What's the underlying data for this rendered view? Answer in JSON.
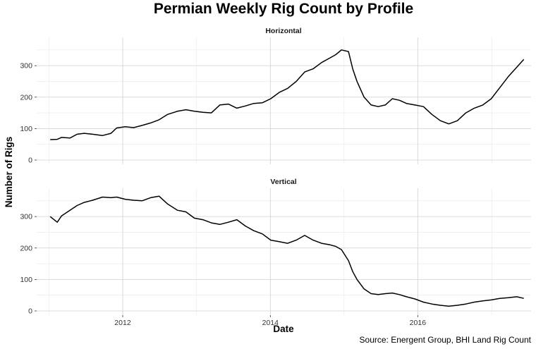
{
  "chart_data": {
    "type": "line",
    "title": "Permian Weekly Rig Count by Profile",
    "xlabel": "Date",
    "ylabel": "Number of Rigs",
    "caption": "Source: Energent Group, BHI Land Rig Count",
    "xlim": [
      "2010-11-01",
      "2017-07-15"
    ],
    "x_ticks": [
      "2012",
      "2014",
      "2016"
    ],
    "y_ticks": [
      0,
      100,
      200,
      300
    ],
    "ylim": [
      0,
      390
    ],
    "grid": true,
    "line_color": "#000000",
    "panels": [
      {
        "name": "Horizontal",
        "points": [
          [
            "2011-01-07",
            65
          ],
          [
            "2011-02-11",
            66
          ],
          [
            "2011-03-04",
            72
          ],
          [
            "2011-04-15",
            70
          ],
          [
            "2011-05-20",
            82
          ],
          [
            "2011-06-24",
            85
          ],
          [
            "2011-08-05",
            82
          ],
          [
            "2011-09-23",
            78
          ],
          [
            "2011-11-04",
            85
          ],
          [
            "2011-12-02",
            102
          ],
          [
            "2012-01-13",
            106
          ],
          [
            "2012-02-24",
            103
          ],
          [
            "2012-04-06",
            110
          ],
          [
            "2012-05-18",
            118
          ],
          [
            "2012-06-29",
            128
          ],
          [
            "2012-08-10",
            145
          ],
          [
            "2012-09-28",
            155
          ],
          [
            "2012-11-09",
            160
          ],
          [
            "2012-12-21",
            155
          ],
          [
            "2013-02-01",
            152
          ],
          [
            "2013-03-15",
            150
          ],
          [
            "2013-04-26",
            175
          ],
          [
            "2013-06-07",
            178
          ],
          [
            "2013-07-19",
            165
          ],
          [
            "2013-08-30",
            172
          ],
          [
            "2013-10-11",
            180
          ],
          [
            "2013-11-22",
            182
          ],
          [
            "2014-01-03",
            195
          ],
          [
            "2014-02-14",
            215
          ],
          [
            "2014-03-28",
            228
          ],
          [
            "2014-05-09",
            250
          ],
          [
            "2014-06-20",
            280
          ],
          [
            "2014-08-01",
            290
          ],
          [
            "2014-09-12",
            310
          ],
          [
            "2014-10-24",
            325
          ],
          [
            "2014-11-21",
            335
          ],
          [
            "2014-12-19",
            350
          ],
          [
            "2015-01-23",
            345
          ],
          [
            "2015-02-13",
            290
          ],
          [
            "2015-03-06",
            250
          ],
          [
            "2015-04-10",
            200
          ],
          [
            "2015-05-15",
            175
          ],
          [
            "2015-06-19",
            170
          ],
          [
            "2015-07-24",
            175
          ],
          [
            "2015-08-28",
            195
          ],
          [
            "2015-10-02",
            190
          ],
          [
            "2015-11-06",
            180
          ],
          [
            "2015-12-18",
            175
          ],
          [
            "2016-01-29",
            170
          ],
          [
            "2016-03-11",
            145
          ],
          [
            "2016-04-22",
            125
          ],
          [
            "2016-06-03",
            115
          ],
          [
            "2016-07-15",
            125
          ],
          [
            "2016-08-26",
            150
          ],
          [
            "2016-10-07",
            165
          ],
          [
            "2016-11-18",
            175
          ],
          [
            "2016-12-30",
            195
          ],
          [
            "2017-02-10",
            230
          ],
          [
            "2017-03-24",
            265
          ],
          [
            "2017-05-05",
            295
          ],
          [
            "2017-06-09",
            320
          ]
        ]
      },
      {
        "name": "Vertical",
        "points": [
          [
            "2011-01-07",
            300
          ],
          [
            "2011-02-11",
            282
          ],
          [
            "2011-03-04",
            302
          ],
          [
            "2011-04-15",
            320
          ],
          [
            "2011-05-20",
            335
          ],
          [
            "2011-06-24",
            345
          ],
          [
            "2011-08-05",
            352
          ],
          [
            "2011-09-23",
            362
          ],
          [
            "2011-11-04",
            360
          ],
          [
            "2011-12-02",
            362
          ],
          [
            "2012-01-13",
            355
          ],
          [
            "2012-02-24",
            352
          ],
          [
            "2012-04-06",
            350
          ],
          [
            "2012-05-18",
            360
          ],
          [
            "2012-06-29",
            365
          ],
          [
            "2012-08-10",
            340
          ],
          [
            "2012-09-28",
            320
          ],
          [
            "2012-11-09",
            315
          ],
          [
            "2012-12-21",
            295
          ],
          [
            "2013-02-01",
            290
          ],
          [
            "2013-03-15",
            280
          ],
          [
            "2013-04-26",
            275
          ],
          [
            "2013-06-07",
            282
          ],
          [
            "2013-07-19",
            290
          ],
          [
            "2013-08-30",
            270
          ],
          [
            "2013-10-11",
            255
          ],
          [
            "2013-11-22",
            245
          ],
          [
            "2014-01-03",
            225
          ],
          [
            "2014-02-14",
            220
          ],
          [
            "2014-03-28",
            215
          ],
          [
            "2014-05-09",
            225
          ],
          [
            "2014-06-20",
            240
          ],
          [
            "2014-08-01",
            225
          ],
          [
            "2014-09-12",
            215
          ],
          [
            "2014-10-24",
            210
          ],
          [
            "2014-11-21",
            205
          ],
          [
            "2014-12-19",
            195
          ],
          [
            "2015-01-23",
            160
          ],
          [
            "2015-02-13",
            125
          ],
          [
            "2015-03-06",
            100
          ],
          [
            "2015-04-10",
            70
          ],
          [
            "2015-05-15",
            55
          ],
          [
            "2015-06-19",
            52
          ],
          [
            "2015-07-24",
            55
          ],
          [
            "2015-08-28",
            57
          ],
          [
            "2015-10-02",
            52
          ],
          [
            "2015-11-06",
            45
          ],
          [
            "2015-12-18",
            38
          ],
          [
            "2016-01-29",
            28
          ],
          [
            "2016-03-11",
            22
          ],
          [
            "2016-04-22",
            18
          ],
          [
            "2016-06-03",
            15
          ],
          [
            "2016-07-15",
            18
          ],
          [
            "2016-08-26",
            22
          ],
          [
            "2016-10-07",
            28
          ],
          [
            "2016-11-18",
            32
          ],
          [
            "2016-12-30",
            35
          ],
          [
            "2017-02-10",
            40
          ],
          [
            "2017-03-24",
            42
          ],
          [
            "2017-05-05",
            45
          ],
          [
            "2017-06-09",
            40
          ]
        ]
      }
    ]
  }
}
